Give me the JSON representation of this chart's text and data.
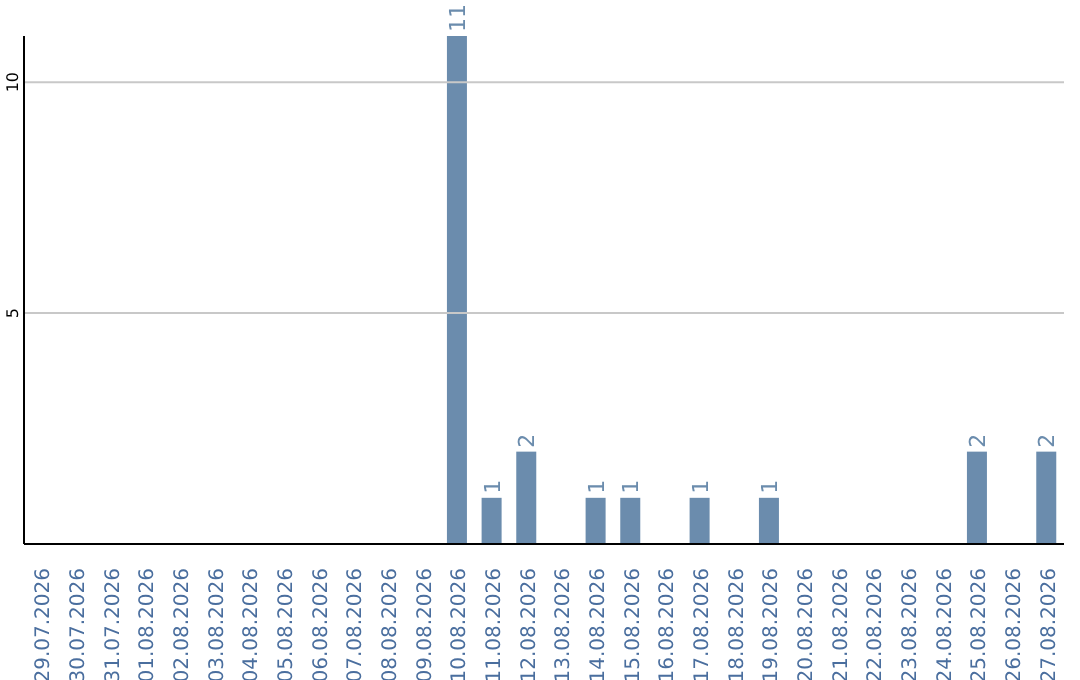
{
  "chart_data": {
    "type": "bar",
    "categories": [
      "29.07.2026",
      "30.07.2026",
      "31.07.2026",
      "01.08.2026",
      "02.08.2026",
      "03.08.2026",
      "04.08.2026",
      "05.08.2026",
      "06.08.2026",
      "07.08.2026",
      "08.08.2026",
      "09.08.2026",
      "10.08.2026",
      "11.08.2026",
      "12.08.2026",
      "13.08.2026",
      "14.08.2026",
      "15.08.2026",
      "16.08.2026",
      "17.08.2026",
      "18.08.2026",
      "19.08.2026",
      "20.08.2026",
      "21.08.2026",
      "22.08.2026",
      "23.08.2026",
      "24.08.2026",
      "25.08.2026",
      "26.08.2026",
      "27.08.2026"
    ],
    "values": [
      0,
      0,
      0,
      0,
      0,
      0,
      0,
      0,
      0,
      0,
      0,
      0,
      11,
      1,
      2,
      0,
      1,
      1,
      0,
      1,
      0,
      1,
      0,
      0,
      0,
      0,
      0,
      2,
      0,
      2
    ],
    "value_labels": [
      null,
      null,
      null,
      null,
      null,
      null,
      null,
      null,
      null,
      null,
      null,
      null,
      "11",
      "1",
      "2",
      null,
      "1",
      "1",
      null,
      "1",
      null,
      "1",
      null,
      null,
      null,
      null,
      null,
      "2",
      null,
      "2"
    ],
    "color": "#6b8cad",
    "ylim": [
      0,
      11
    ],
    "yticks": [
      5,
      10
    ],
    "grid": "y"
  }
}
